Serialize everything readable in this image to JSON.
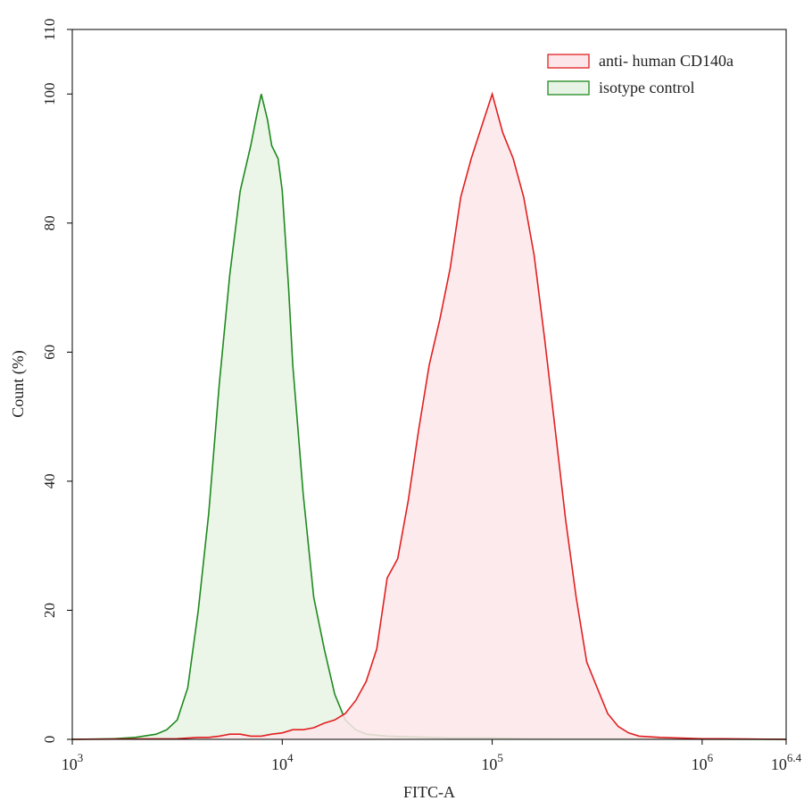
{
  "chart_data": {
    "type": "area",
    "xlabel": "FITC-A",
    "ylabel": "Count  (%)",
    "xscale": "log10",
    "xlim_log10": [
      3,
      6.4
    ],
    "ylim": [
      0,
      110
    ],
    "y_ticks": [
      0,
      20,
      40,
      60,
      80,
      100,
      110
    ],
    "x_ticks": [
      {
        "base": "10",
        "exp": "3",
        "log10": 3
      },
      {
        "base": "10",
        "exp": "4",
        "log10": 4
      },
      {
        "base": "10",
        "exp": "5",
        "log10": 5
      },
      {
        "base": "10",
        "exp": "6",
        "log10": 6
      },
      {
        "base": "10",
        "exp": "6.4",
        "log10": 6.4
      }
    ],
    "legend_position": "top-right",
    "grid": false,
    "series": [
      {
        "name": "anti- human CD140a",
        "color": "#e02020",
        "fill": "#fde6ea",
        "log10_x": [
          3.0,
          3.5,
          3.6,
          3.65,
          3.7,
          3.75,
          3.8,
          3.85,
          3.9,
          3.95,
          4.0,
          4.05,
          4.1,
          4.15,
          4.2,
          4.25,
          4.3,
          4.35,
          4.4,
          4.45,
          4.5,
          4.55,
          4.6,
          4.65,
          4.7,
          4.75,
          4.8,
          4.85,
          4.9,
          4.95,
          5.0,
          5.05,
          5.1,
          5.15,
          5.2,
          5.25,
          5.3,
          5.35,
          5.4,
          5.45,
          5.5,
          5.55,
          5.6,
          5.65,
          5.7,
          5.8,
          5.9,
          6.0,
          6.1,
          6.4
        ],
        "values": [
          0,
          0.1,
          0.3,
          0.3,
          0.5,
          0.8,
          0.8,
          0.5,
          0.5,
          0.8,
          1.0,
          1.5,
          1.5,
          1.8,
          2.5,
          3.0,
          4.0,
          6.0,
          9.0,
          14.0,
          25.0,
          28.0,
          37.0,
          48.0,
          58.0,
          65.0,
          73.0,
          84.0,
          90.0,
          95.0,
          100.0,
          94.0,
          90.0,
          84.0,
          75.0,
          62.0,
          48.0,
          34.0,
          22.0,
          12.0,
          8.0,
          4.0,
          2.0,
          1.0,
          0.5,
          0.3,
          0.2,
          0.1,
          0.1,
          0
        ]
      },
      {
        "name": "isotype control",
        "color": "#1f8a1f",
        "fill": "#e7f3e4",
        "log10_x": [
          3.0,
          3.2,
          3.3,
          3.4,
          3.45,
          3.5,
          3.55,
          3.6,
          3.65,
          3.7,
          3.75,
          3.8,
          3.85,
          3.88,
          3.9,
          3.93,
          3.95,
          3.98,
          4.0,
          4.03,
          4.05,
          4.1,
          4.15,
          4.2,
          4.25,
          4.3,
          4.35,
          4.4,
          4.5,
          4.6,
          4.7,
          4.8,
          5.0,
          5.2,
          6.4
        ],
        "values": [
          0,
          0.1,
          0.3,
          0.8,
          1.5,
          3.0,
          8.0,
          20.0,
          35.0,
          55.0,
          72.0,
          85.0,
          92.0,
          97.0,
          100.0,
          96.0,
          92.0,
          90.0,
          85.0,
          70.0,
          58.0,
          38.0,
          22.0,
          14.0,
          7.0,
          3.0,
          1.5,
          0.8,
          0.5,
          0.4,
          0.3,
          0.2,
          0.2,
          0.1,
          0
        ]
      }
    ]
  }
}
